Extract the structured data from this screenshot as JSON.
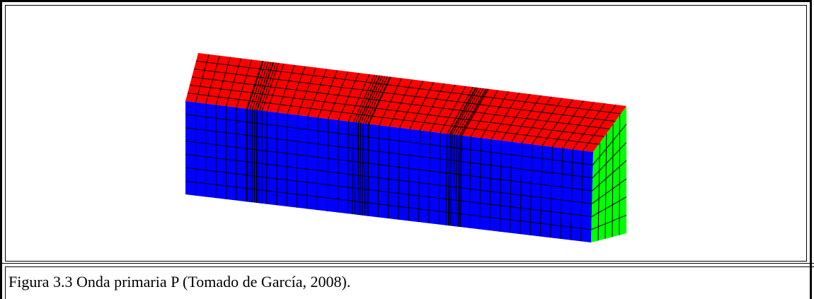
{
  "caption": "Figura 3.3 Onda primaria P (Tomado de García, 2008)."
}
